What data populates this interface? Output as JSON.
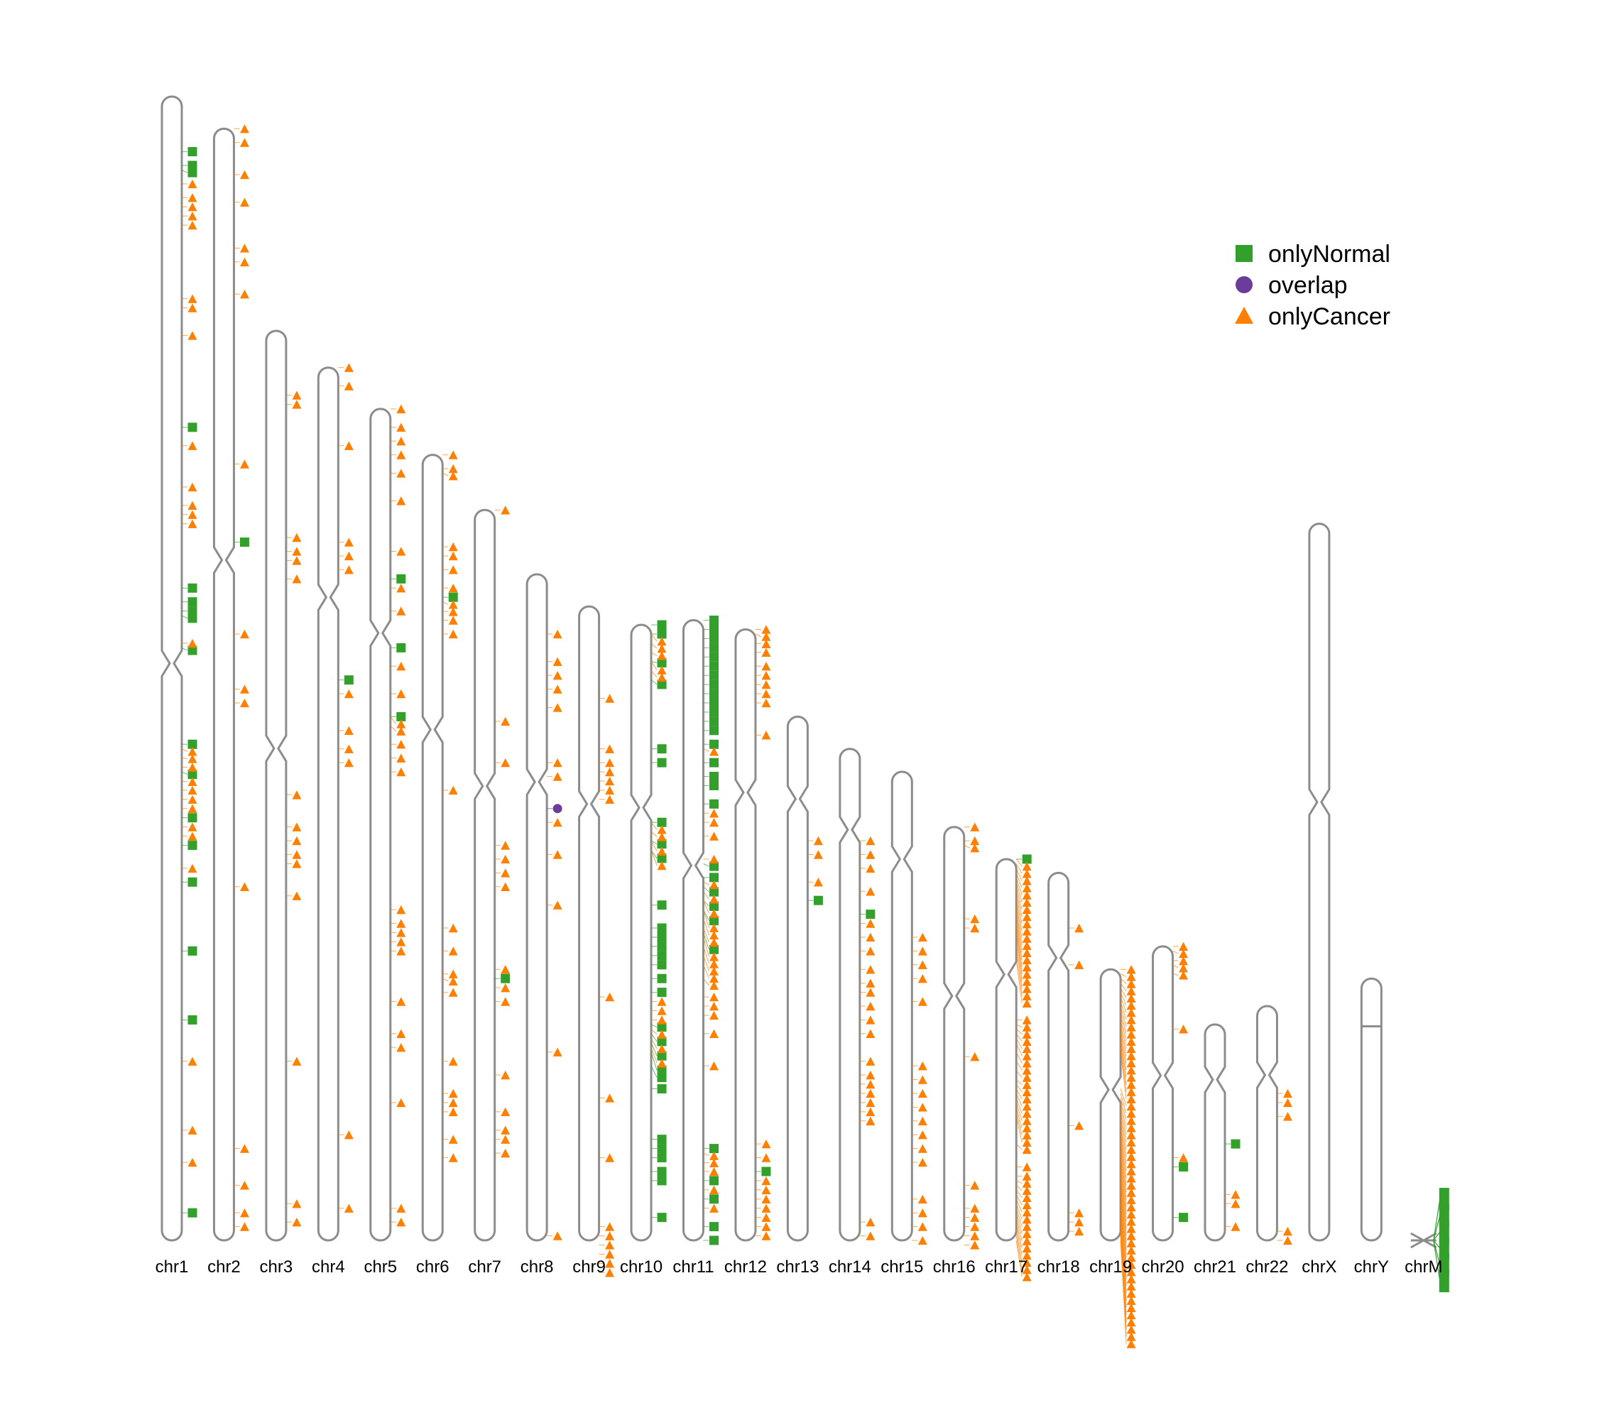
{
  "chart_data": {
    "type": "scatter",
    "description_of_axes": "",
    "colors": {
      "onlyNormal": "#33a02c",
      "overlap": "#6a3d9a",
      "onlyCancer": "#ff7f00",
      "ideogram": "#8c8c8c"
    },
    "legend": {
      "placement": "top-right",
      "items": [
        {
          "name": "onlyNormal",
          "shape": "square",
          "color": "#33a02c"
        },
        {
          "name": "overlap",
          "shape": "circle",
          "color": "#6a3d9a"
        },
        {
          "name": "onlyCancer",
          "shape": "triangle",
          "color": "#ff7f00"
        }
      ]
    },
    "chromosomes": [
      {
        "name": "chr1",
        "length_mb": 249.0,
        "centromere_mb": 123.4,
        "normal": [
          12,
          15,
          16,
          72,
          107,
          110,
          112,
          113,
          120,
          141,
          147,
          157,
          163,
          171,
          186,
          201,
          243
        ],
        "overlap": [],
        "cancer": [
          19,
          22,
          24,
          26,
          28,
          44,
          46,
          52,
          76,
          85,
          89,
          91,
          93,
          119,
          142,
          144,
          146,
          149,
          151,
          153,
          155,
          159,
          161,
          168,
          210,
          225,
          232
        ]
      },
      {
        "name": "chr2",
        "length_mb": 242.0,
        "centromere_mb": 93.9,
        "normal": [
          90
        ],
        "overlap": [],
        "cancer": [
          0,
          3,
          10,
          16,
          26,
          29,
          36,
          73,
          110,
          122,
          125,
          165,
          222,
          230,
          236,
          239
        ]
      },
      {
        "name": "chr3",
        "length_mb": 198.0,
        "centromere_mb": 90.9,
        "normal": [],
        "overlap": [],
        "cancer": [
          14,
          16,
          45,
          48,
          50,
          54,
          101,
          108,
          111,
          114,
          116,
          123,
          159,
          190,
          194
        ]
      },
      {
        "name": "chr4",
        "length_mb": 190.0,
        "centromere_mb": 50.0,
        "normal": [
          68
        ],
        "overlap": [],
        "cancer": [
          0,
          4,
          17,
          38,
          41,
          44,
          71,
          79,
          83,
          86,
          167,
          183
        ]
      },
      {
        "name": "chr5",
        "length_mb": 181.0,
        "centromere_mb": 48.8,
        "normal": [
          37,
          52,
          67
        ],
        "overlap": [],
        "cancer": [
          0,
          4,
          7,
          10,
          14,
          20,
          31,
          39,
          44,
          56,
          62,
          67,
          69,
          73,
          76,
          79,
          109,
          112,
          114,
          116,
          118,
          129,
          136,
          139,
          151,
          174,
          177
        ]
      },
      {
        "name": "chr6",
        "length_mb": 171.0,
        "centromere_mb": 59.8,
        "normal": [
          31
        ],
        "overlap": [],
        "cancer": [
          0,
          3,
          4,
          20,
          22,
          25,
          29,
          32,
          34,
          36,
          39,
          73,
          103,
          108,
          113,
          114,
          117,
          132,
          139,
          141,
          143,
          149,
          153
        ]
      },
      {
        "name": "chr7",
        "length_mb": 159.0,
        "centromere_mb": 60.1,
        "normal": [
          102
        ],
        "overlap": [],
        "cancer": [
          0,
          46,
          55,
          73,
          76,
          79,
          82,
          100,
          104,
          107,
          123,
          131,
          135,
          137,
          140
        ]
      },
      {
        "name": "chr8",
        "length_mb": 145.0,
        "centromere_mb": 45.2,
        "normal": [],
        "overlap": [
          51
        ],
        "cancer": [
          13,
          19,
          22,
          25,
          29,
          41,
          44,
          54,
          61,
          72,
          104,
          144
        ]
      },
      {
        "name": "chr9",
        "length_mb": 138.0,
        "centromere_mb": 43.0,
        "normal": [],
        "overlap": [],
        "cancer": [
          20,
          31,
          34,
          36,
          38,
          40,
          42,
          85,
          107,
          120,
          135,
          137,
          139,
          141,
          143,
          145
        ]
      },
      {
        "name": "chr10",
        "length_mb": 134.0,
        "centromere_mb": 39.8,
        "normal": [
          0,
          2,
          8,
          12,
          27,
          30,
          43,
          47,
          49,
          61,
          66,
          68,
          70,
          72,
          74,
          77,
          80,
          87,
          89,
          91,
          93,
          96,
          101,
          112,
          114,
          116,
          119,
          121,
          129
        ],
        "overlap": [],
        "cancer": [
          2,
          4,
          6,
          8,
          10,
          43,
          45,
          47,
          49,
          82,
          84,
          86,
          88,
          90,
          92
        ]
      },
      {
        "name": "chr11",
        "length_mb": 135.0,
        "centromere_mb": 53.4,
        "normal": [
          0,
          2,
          4,
          6,
          8,
          10,
          12,
          14,
          16,
          18,
          20,
          22,
          24,
          27,
          31,
          34,
          36,
          40,
          53,
          56,
          58,
          61,
          63,
          68,
          115,
          122,
          126,
          132,
          135
        ],
        "overlap": [],
        "cancer": [
          28,
          42,
          44,
          47,
          52,
          57,
          59,
          61,
          63,
          65,
          67,
          69,
          71,
          73,
          75,
          78,
          82,
          84,
          86,
          90,
          97,
          116,
          118,
          120,
          124,
          128
        ]
      },
      {
        "name": "chr12",
        "length_mb": 133.0,
        "centromere_mb": 35.5,
        "normal": [
          118
        ],
        "overlap": [],
        "cancer": [
          0,
          1,
          3,
          5,
          8,
          10,
          12,
          14,
          16,
          23,
          112,
          115,
          120,
          122,
          124,
          126,
          128,
          130,
          132
        ]
      },
      {
        "name": "chr13",
        "length_mb": 114.0,
        "centromere_mb": 17.9,
        "normal": [
          40
        ],
        "overlap": [],
        "cancer": [
          27,
          30,
          36
        ]
      },
      {
        "name": "chr14",
        "length_mb": 107.0,
        "centromere_mb": 17.6,
        "normal": [
          36
        ],
        "overlap": [],
        "cancer": [
          20,
          23,
          26,
          31,
          38,
          41,
          44,
          48,
          51,
          53,
          56,
          59,
          62,
          68,
          71,
          73,
          75,
          77,
          79,
          81,
          103,
          106
        ]
      },
      {
        "name": "chr15",
        "length_mb": 102.0,
        "centromere_mb": 19.0,
        "normal": [],
        "overlap": [],
        "cancer": [
          36,
          39,
          42,
          45,
          50,
          64,
          67,
          70,
          73,
          76,
          79,
          82,
          85,
          93,
          96,
          99,
          102
        ]
      },
      {
        "name": "chr16",
        "length_mb": 90.0,
        "centromere_mb": 36.8,
        "normal": [],
        "overlap": [],
        "cancer": [
          0,
          3,
          4,
          20,
          22,
          50,
          78,
          83,
          85,
          87,
          89,
          91
        ]
      },
      {
        "name": "chr17",
        "length_mb": 83.0,
        "centromere_mb": 25.1,
        "normal": [
          0
        ],
        "overlap": [],
        "cancer": [
          0,
          1,
          2,
          3,
          4,
          5,
          6,
          7,
          8,
          9,
          10,
          11,
          12,
          13,
          14,
          15,
          16,
          18,
          20,
          22,
          35,
          36,
          37,
          38,
          39,
          40,
          42,
          44,
          46,
          48,
          49,
          50,
          51,
          52,
          53,
          54,
          55,
          56,
          62,
          67,
          69,
          70,
          71,
          72,
          73,
          74,
          75,
          76,
          77,
          78,
          79,
          80,
          81,
          82,
          83
        ]
      },
      {
        "name": "chr18",
        "length_mb": 80.0,
        "centromere_mb": 18.5,
        "normal": [],
        "overlap": [],
        "cancer": [
          12,
          20,
          55,
          74,
          76,
          78
        ]
      },
      {
        "name": "chr19",
        "length_mb": 59.0,
        "centromere_mb": 26.2,
        "normal": [],
        "overlap": [],
        "cancer": [
          0,
          1,
          2,
          3,
          4,
          5,
          6,
          7,
          8,
          9,
          10,
          11,
          12,
          13,
          14,
          15,
          16,
          17,
          18,
          26,
          27,
          28,
          29,
          30,
          31,
          32,
          33,
          34,
          35,
          36,
          37,
          38,
          39,
          40,
          41,
          42,
          43,
          44,
          45,
          46,
          47,
          48,
          49,
          50,
          51,
          52,
          53,
          54,
          55,
          56,
          57,
          58,
          59
        ]
      },
      {
        "name": "chr20",
        "length_mb": 64.0,
        "centromere_mb": 28.1,
        "normal": [
          48,
          59
        ],
        "overlap": [],
        "cancer": [
          0,
          1,
          3,
          4,
          6,
          18,
          46
        ]
      },
      {
        "name": "chr21",
        "length_mb": 47.0,
        "centromere_mb": 12.0,
        "normal": [
          26
        ],
        "overlap": [],
        "cancer": [
          37,
          39,
          44
        ]
      },
      {
        "name": "chr22",
        "length_mb": 51.0,
        "centromere_mb": 15.0,
        "normal": [],
        "overlap": [],
        "cancer": [
          19,
          21,
          24,
          49,
          51
        ]
      },
      {
        "name": "chrX",
        "length_mb": 156.0,
        "centromere_mb": 60.6,
        "normal": [],
        "overlap": [],
        "cancer": []
      },
      {
        "name": "chrY",
        "length_mb": 57.0,
        "centromere_mb": 10.4,
        "normal": [],
        "overlap": [],
        "cancer": []
      },
      {
        "name": "chrM",
        "length_mb": 0.0166,
        "normal": [
          0,
          0.003,
          0.006,
          0.009,
          0.012,
          0.0145
        ],
        "overlap": [],
        "cancer": []
      }
    ]
  }
}
